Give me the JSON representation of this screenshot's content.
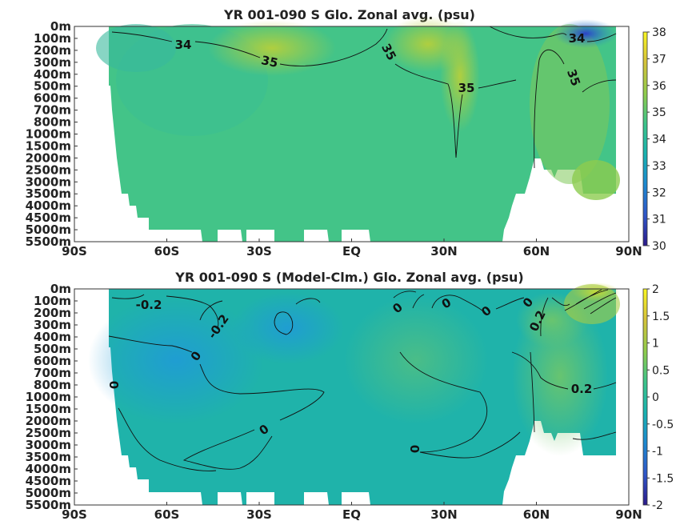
{
  "chart_data": [
    {
      "type": "heatmap",
      "title": "YR 001-090 S Glo. Zonal avg. (psu)",
      "x_ticks": [
        "90S",
        "60S",
        "30S",
        "EQ",
        "30N",
        "60N",
        "90N"
      ],
      "x_values": [
        -90,
        -60,
        -30,
        0,
        30,
        60,
        90
      ],
      "xlim": [
        -90,
        90
      ],
      "y_ticks": [
        "0m",
        "100m",
        "200m",
        "300m",
        "400m",
        "500m",
        "600m",
        "700m",
        "800m",
        "1000m",
        "1500m",
        "2000m",
        "2500m",
        "3000m",
        "3500m",
        "4000m",
        "4500m",
        "5000m",
        "5500m"
      ],
      "colorbar": {
        "min": 30,
        "max": 38,
        "ticks": [
          "30",
          "31",
          "32",
          "33",
          "34",
          "35",
          "36",
          "37",
          "38"
        ]
      },
      "colormap": [
        "#2b1a8a",
        "#2f55c8",
        "#1c8ad0",
        "#19b3b0",
        "#3cc48a",
        "#8fcc4c",
        "#d6c33a",
        "#f9f723"
      ],
      "contour_labels": [
        "34",
        "35",
        "35",
        "35",
        "34",
        "35"
      ],
      "grid": false
    },
    {
      "type": "heatmap",
      "title": "YR 001-090 S (Model-Clm.) Glo. Zonal avg. (psu)",
      "x_ticks": [
        "90S",
        "60S",
        "30S",
        "EQ",
        "30N",
        "60N",
        "90N"
      ],
      "x_values": [
        -90,
        -60,
        -30,
        0,
        30,
        60,
        90
      ],
      "xlim": [
        -90,
        90
      ],
      "y_ticks": [
        "0m",
        "100m",
        "200m",
        "300m",
        "400m",
        "500m",
        "600m",
        "700m",
        "800m",
        "1000m",
        "1500m",
        "2000m",
        "2500m",
        "3000m",
        "3500m",
        "4000m",
        "4500m",
        "5000m",
        "5500m"
      ],
      "colorbar": {
        "min": -2,
        "max": 2,
        "ticks": [
          "-2",
          "-1.5",
          "-1",
          "-0.5",
          "0",
          "0.5",
          "1",
          "1.5",
          "2"
        ]
      },
      "colormap": [
        "#2b1a8a",
        "#2f55c8",
        "#1c8ad0",
        "#19b3b0",
        "#3cc48a",
        "#8fcc4c",
        "#d6c33a",
        "#f9f723"
      ],
      "contour_labels": [
        "-0.2",
        "-0.2",
        "0",
        "0",
        "0",
        "0",
        "0",
        "0",
        "0",
        "0.2",
        "0.2",
        "0"
      ],
      "grid": false
    }
  ]
}
